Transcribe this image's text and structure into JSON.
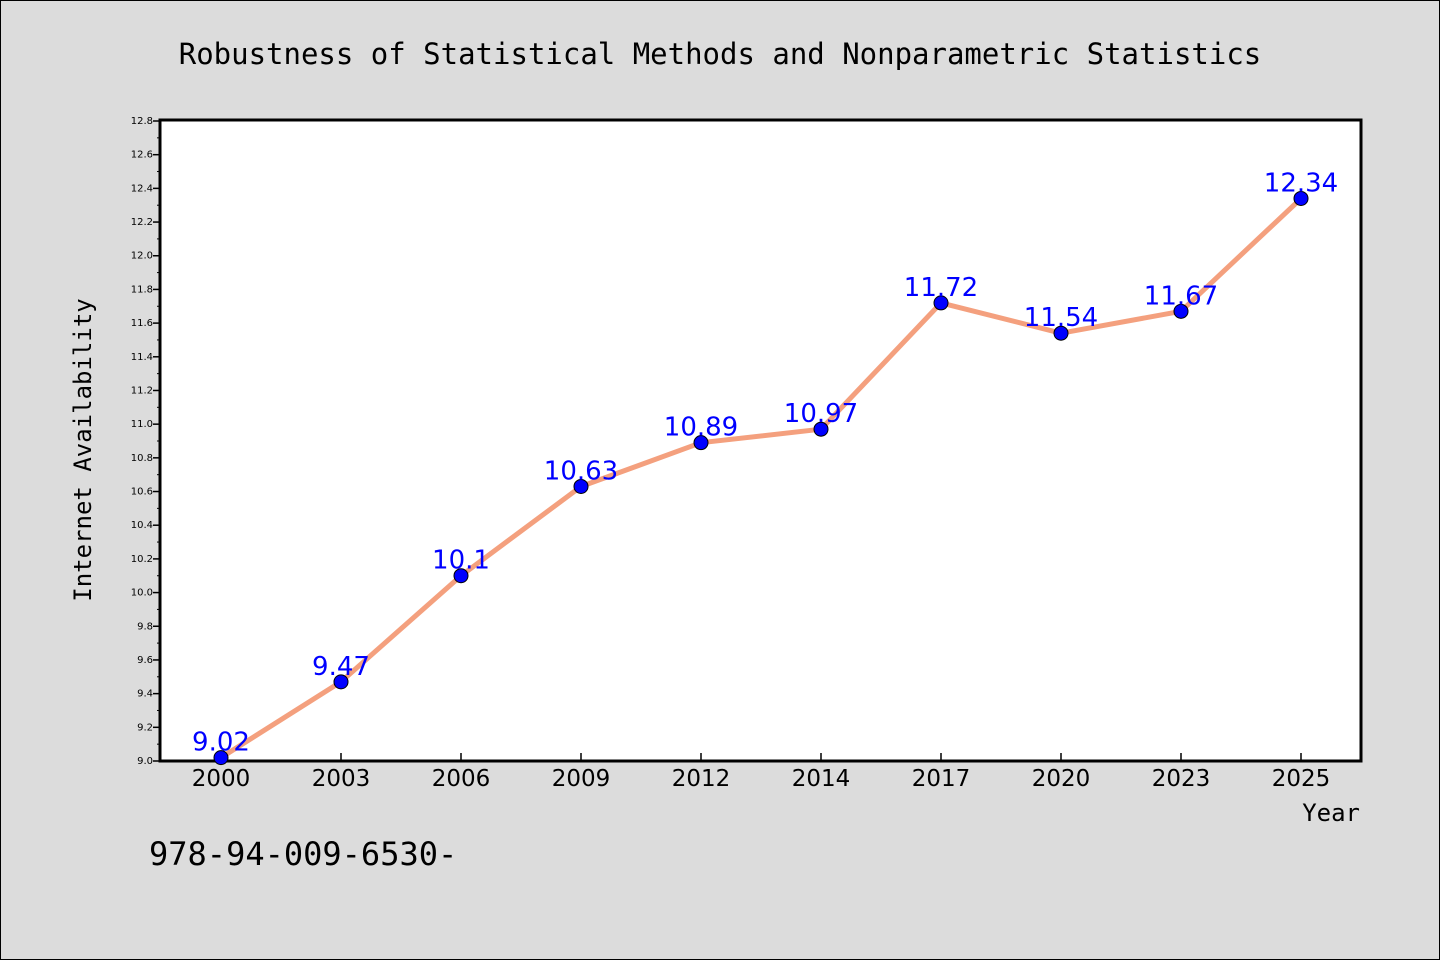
{
  "chart_data": {
    "type": "line",
    "title": "Robustness of Statistical Methods and Nonparametric Statistics",
    "xlabel": "Year",
    "ylabel": "Internet Availability",
    "categories": [
      "2000",
      "2003",
      "2006",
      "2009",
      "2012",
      "2014",
      "2017",
      "2020",
      "2023",
      "2025"
    ],
    "series": [
      {
        "values": [
          9.02,
          9.47,
          10.1,
          10.63,
          10.89,
          10.97,
          11.72,
          11.54,
          11.67,
          12.34
        ],
        "labels": [
          "9.02",
          "9.47",
          "10.1",
          "10.63",
          "10.89",
          "10.97",
          "11.72",
          "11.54",
          "11.67",
          "12.34"
        ]
      }
    ],
    "ylim": [
      9.0,
      12.8
    ],
    "yticks": [
      "9.0",
      "9.2",
      "9.4",
      "9.6",
      "9.8",
      "10.0",
      "10.2",
      "10.4",
      "10.6",
      "10.8",
      "11.0",
      "11.2",
      "11.4",
      "11.6",
      "11.8",
      "12.0",
      "12.2",
      "12.4",
      "12.6",
      "12.8"
    ],
    "grid": false,
    "legend": "none",
    "colors": {
      "line": "#f4a07e",
      "marker": "#0000ff",
      "data_label": "#0000ff",
      "background": "#dcdcdc",
      "plot_bg": "#ffffff"
    }
  },
  "footer_note": "978-94-009-6530-"
}
